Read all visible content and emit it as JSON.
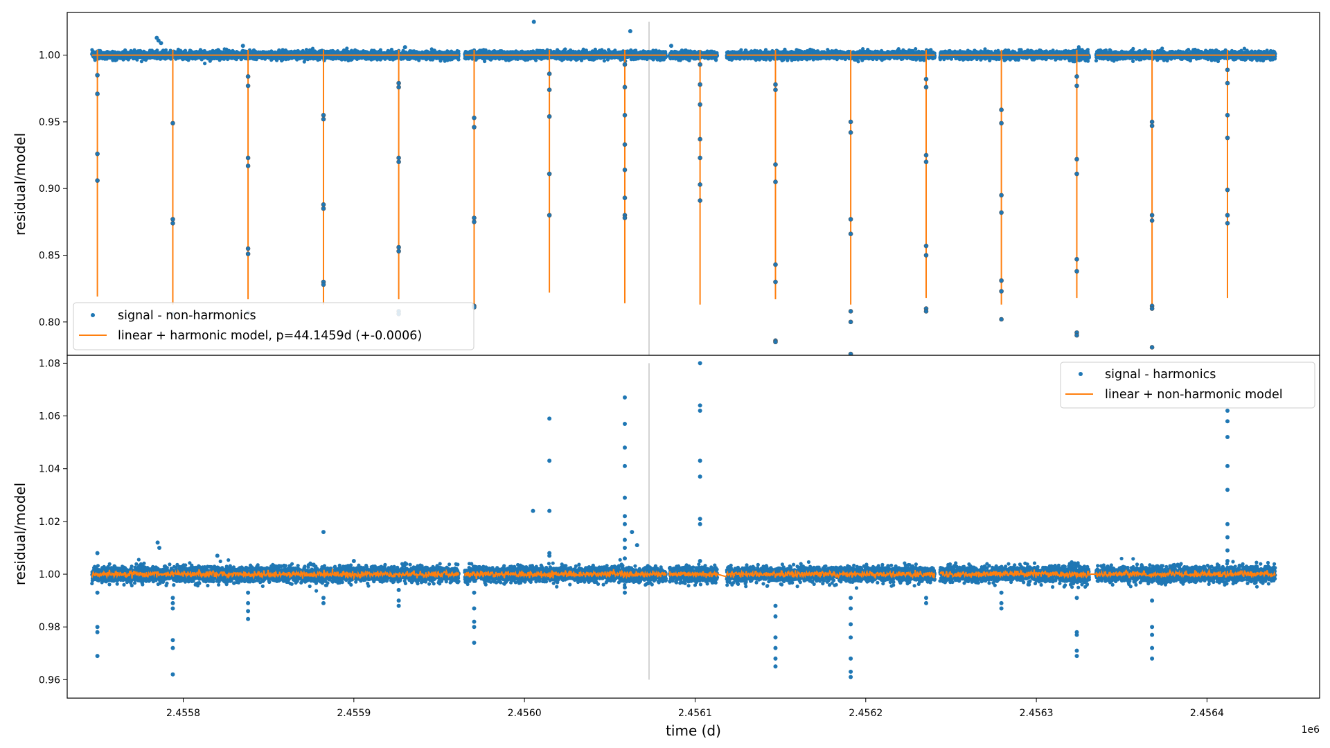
{
  "chart_data": [
    {
      "type": "scatter",
      "panel": "top",
      "ylabel": "residual/model",
      "xlim": [
        2455732,
        2456466
      ],
      "ylim": [
        0.775,
        1.032
      ],
      "yticks": [
        "0.80",
        "0.85",
        "0.90",
        "0.95",
        "1.00"
      ],
      "grid": false,
      "legend_placement": "lower-left",
      "colors": {
        "signal": "#1f77b4",
        "model": "#ff7f0e",
        "marker_line": "#d3d3d3"
      },
      "vertical_marker": {
        "x": 2456073,
        "y_range": [
          0.775,
          1.025
        ]
      },
      "baseline": 1.0,
      "period_d": 44.1459,
      "series": [
        {
          "name": "signal - non-harmonics",
          "kind": "scatter",
          "color": "#1f77b4"
        },
        {
          "name": "linear + harmonic model, p=44.1459d (+-0.0006)",
          "kind": "line",
          "color": "#ff7f0e"
        }
      ],
      "dip_times": [
        2455749.7,
        2455793.9,
        2455838.0,
        2455882.2,
        2455926.3,
        2455970.5,
        2456014.6,
        2456058.8,
        2456102.9,
        2456147.1,
        2456191.2,
        2456235.4,
        2456279.5,
        2456323.7,
        2456367.8,
        2456412.0
      ],
      "model_dip_min": [
        0.819,
        0.813,
        0.817,
        0.813,
        0.817,
        0.813,
        0.822,
        0.814,
        0.813,
        0.817,
        0.813,
        0.818,
        0.813,
        0.818,
        0.813,
        0.818
      ],
      "transit_points": [
        [
          2455749.7,
          0.985
        ],
        [
          2455749.7,
          0.971
        ],
        [
          2455749.7,
          0.926
        ],
        [
          2455749.7,
          0.906
        ],
        [
          2455793.9,
          0.949
        ],
        [
          2455793.9,
          0.877
        ],
        [
          2455793.9,
          0.874
        ],
        [
          2455793.9,
          0.806
        ],
        [
          2455838.0,
          0.984
        ],
        [
          2455838.0,
          0.977
        ],
        [
          2455838.0,
          0.923
        ],
        [
          2455838.0,
          0.917
        ],
        [
          2455838.0,
          0.855
        ],
        [
          2455838.0,
          0.851
        ],
        [
          2455838.0,
          0.807
        ],
        [
          2455882.2,
          0.955
        ],
        [
          2455882.2,
          0.952
        ],
        [
          2455882.2,
          0.888
        ],
        [
          2455882.2,
          0.885
        ],
        [
          2455882.2,
          0.83
        ],
        [
          2455882.2,
          0.828
        ],
        [
          2455926.3,
          0.979
        ],
        [
          2455926.3,
          0.976
        ],
        [
          2455926.3,
          0.923
        ],
        [
          2455926.3,
          0.92
        ],
        [
          2455926.3,
          0.856
        ],
        [
          2455926.3,
          0.853
        ],
        [
          2455926.3,
          0.808
        ],
        [
          2455926.3,
          0.806
        ],
        [
          2455970.5,
          0.953
        ],
        [
          2455970.5,
          0.946
        ],
        [
          2455970.5,
          0.878
        ],
        [
          2455970.5,
          0.875
        ],
        [
          2455970.5,
          0.812
        ],
        [
          2455970.5,
          0.811
        ],
        [
          2456014.6,
          0.986
        ],
        [
          2456014.6,
          0.974
        ],
        [
          2456014.6,
          0.954
        ],
        [
          2456014.6,
          0.911
        ],
        [
          2456014.6,
          0.88
        ],
        [
          2456058.8,
          0.993
        ],
        [
          2456058.8,
          0.976
        ],
        [
          2456058.8,
          0.955
        ],
        [
          2456058.8,
          0.933
        ],
        [
          2456058.8,
          0.914
        ],
        [
          2456058.8,
          0.893
        ],
        [
          2456058.8,
          0.88
        ],
        [
          2456058.8,
          0.878
        ],
        [
          2456102.9,
          0.993
        ],
        [
          2456102.9,
          0.978
        ],
        [
          2456102.9,
          0.963
        ],
        [
          2456102.9,
          0.937
        ],
        [
          2456102.9,
          0.923
        ],
        [
          2456102.9,
          0.903
        ],
        [
          2456102.9,
          0.891
        ],
        [
          2456147.1,
          0.978
        ],
        [
          2456147.1,
          0.974
        ],
        [
          2456147.1,
          0.918
        ],
        [
          2456147.1,
          0.905
        ],
        [
          2456147.1,
          0.843
        ],
        [
          2456147.1,
          0.83
        ],
        [
          2456147.1,
          0.786
        ],
        [
          2456147.1,
          0.785
        ],
        [
          2456191.2,
          0.95
        ],
        [
          2456191.2,
          0.942
        ],
        [
          2456191.2,
          0.877
        ],
        [
          2456191.2,
          0.866
        ],
        [
          2456191.2,
          0.808
        ],
        [
          2456191.2,
          0.8
        ],
        [
          2456191.2,
          0.776
        ],
        [
          2456235.4,
          0.982
        ],
        [
          2456235.4,
          0.976
        ],
        [
          2456235.4,
          0.925
        ],
        [
          2456235.4,
          0.92
        ],
        [
          2456235.4,
          0.857
        ],
        [
          2456235.4,
          0.85
        ],
        [
          2456235.4,
          0.81
        ],
        [
          2456235.4,
          0.808
        ],
        [
          2456279.5,
          0.959
        ],
        [
          2456279.5,
          0.949
        ],
        [
          2456279.5,
          0.895
        ],
        [
          2456279.5,
          0.882
        ],
        [
          2456279.5,
          0.831
        ],
        [
          2456279.5,
          0.823
        ],
        [
          2456279.5,
          0.802
        ],
        [
          2456323.7,
          0.984
        ],
        [
          2456323.7,
          0.977
        ],
        [
          2456323.7,
          0.922
        ],
        [
          2456323.7,
          0.911
        ],
        [
          2456323.7,
          0.847
        ],
        [
          2456323.7,
          0.838
        ],
        [
          2456323.7,
          0.792
        ],
        [
          2456323.7,
          0.79
        ],
        [
          2456367.8,
          0.95
        ],
        [
          2456367.8,
          0.947
        ],
        [
          2456367.8,
          0.88
        ],
        [
          2456367.8,
          0.876
        ],
        [
          2456367.8,
          0.812
        ],
        [
          2456367.8,
          0.81
        ],
        [
          2456367.8,
          0.781
        ],
        [
          2456412.0,
          0.989
        ],
        [
          2456412.0,
          0.979
        ],
        [
          2456412.0,
          0.955
        ],
        [
          2456412.0,
          0.938
        ],
        [
          2456412.0,
          0.899
        ],
        [
          2456412.0,
          0.88
        ],
        [
          2456412.0,
          0.874
        ]
      ],
      "baseline_outliers": [
        [
          2455784.5,
          1.013
        ],
        [
          2455785.5,
          1.011
        ],
        [
          2455787.0,
          1.009
        ],
        [
          2456005.5,
          1.025
        ],
        [
          2456062.0,
          1.018
        ],
        [
          2456086.0,
          1.007
        ],
        [
          2455835.0,
          1.007
        ],
        [
          2455930.0,
          1.006
        ]
      ]
    },
    {
      "type": "scatter",
      "panel": "bottom",
      "xlabel": "time (d)",
      "ylabel": "residual/model",
      "x_offset_label": "1e6",
      "xlim": [
        2455732,
        2456466
      ],
      "ylim": [
        0.953,
        1.083
      ],
      "xticks": [
        "2.4558",
        "2.4559",
        "2.4560",
        "2.4561",
        "2.4562",
        "2.4563",
        "2.4564"
      ],
      "yticks": [
        "0.96",
        "0.98",
        "1.00",
        "1.02",
        "1.04",
        "1.06",
        "1.08"
      ],
      "grid": false,
      "legend_placement": "top-right",
      "colors": {
        "signal": "#1f77b4",
        "model": "#ff7f0e",
        "marker_line": "#d3d3d3"
      },
      "vertical_marker": {
        "x": 2456073,
        "y_range": [
          0.96,
          1.08
        ]
      },
      "baseline": 1.0,
      "series": [
        {
          "name": "signal - harmonics",
          "kind": "scatter",
          "color": "#1f77b4"
        },
        {
          "name": "linear + non-harmonic model",
          "kind": "line",
          "color": "#ff7f0e"
        }
      ],
      "residual_points": [
        [
          2455749.7,
          0.98
        ],
        [
          2455749.7,
          0.978
        ],
        [
          2455749.7,
          0.969
        ],
        [
          2455749.7,
          0.993
        ],
        [
          2455749.7,
          1.008
        ],
        [
          2455793.9,
          0.975
        ],
        [
          2455793.9,
          0.972
        ],
        [
          2455793.9,
          0.962
        ],
        [
          2455793.9,
          0.991
        ],
        [
          2455793.9,
          0.989
        ],
        [
          2455793.9,
          0.987
        ],
        [
          2455838.0,
          0.989
        ],
        [
          2455838.0,
          0.986
        ],
        [
          2455838.0,
          0.983
        ],
        [
          2455838.0,
          0.993
        ],
        [
          2455882.2,
          1.016
        ],
        [
          2455882.2,
          0.991
        ],
        [
          2455882.2,
          0.989
        ],
        [
          2455926.3,
          0.99
        ],
        [
          2455926.3,
          0.988
        ],
        [
          2455926.3,
          0.994
        ],
        [
          2455970.5,
          0.987
        ],
        [
          2455970.5,
          0.982
        ],
        [
          2455970.5,
          0.98
        ],
        [
          2455970.5,
          0.974
        ],
        [
          2455970.5,
          0.993
        ],
        [
          2456014.6,
          1.059
        ],
        [
          2456014.6,
          1.043
        ],
        [
          2456014.6,
          1.024
        ],
        [
          2456014.6,
          1.008
        ],
        [
          2456014.6,
          1.007
        ],
        [
          2456005.0,
          1.024
        ],
        [
          2456058.8,
          1.067
        ],
        [
          2456058.8,
          1.057
        ],
        [
          2456058.8,
          1.048
        ],
        [
          2456058.8,
          1.041
        ],
        [
          2456058.8,
          1.029
        ],
        [
          2456058.8,
          1.022
        ],
        [
          2456058.8,
          1.019
        ],
        [
          2456058.8,
          1.013
        ],
        [
          2456058.8,
          1.01
        ],
        [
          2456058.8,
          1.006
        ],
        [
          2456058.8,
          0.995
        ],
        [
          2456058.8,
          0.993
        ],
        [
          2456063.0,
          1.016
        ],
        [
          2456066.0,
          1.011
        ],
        [
          2456102.9,
          1.08
        ],
        [
          2456102.9,
          1.064
        ],
        [
          2456102.9,
          1.062
        ],
        [
          2456102.9,
          1.043
        ],
        [
          2456102.9,
          1.037
        ],
        [
          2456102.9,
          1.021
        ],
        [
          2456102.9,
          1.019
        ],
        [
          2456102.9,
          1.005
        ],
        [
          2456147.1,
          0.988
        ],
        [
          2456147.1,
          0.984
        ],
        [
          2456147.1,
          0.976
        ],
        [
          2456147.1,
          0.972
        ],
        [
          2456147.1,
          0.968
        ],
        [
          2456147.1,
          0.965
        ],
        [
          2456191.2,
          0.981
        ],
        [
          2456191.2,
          0.976
        ],
        [
          2456191.2,
          0.968
        ],
        [
          2456191.2,
          0.963
        ],
        [
          2456191.2,
          0.961
        ],
        [
          2456191.2,
          0.991
        ],
        [
          2456191.2,
          0.987
        ],
        [
          2456235.4,
          0.991
        ],
        [
          2456235.4,
          0.989
        ],
        [
          2456279.5,
          0.993
        ],
        [
          2456279.5,
          0.989
        ],
        [
          2456279.5,
          0.987
        ],
        [
          2456323.7,
          0.978
        ],
        [
          2456323.7,
          0.977
        ],
        [
          2456323.7,
          0.971
        ],
        [
          2456323.7,
          0.969
        ],
        [
          2456323.7,
          0.991
        ],
        [
          2456367.8,
          0.98
        ],
        [
          2456367.8,
          0.977
        ],
        [
          2456367.8,
          0.972
        ],
        [
          2456367.8,
          0.968
        ],
        [
          2456367.8,
          0.99
        ],
        [
          2456412.0,
          1.062
        ],
        [
          2456412.0,
          1.058
        ],
        [
          2456412.0,
          1.052
        ],
        [
          2456412.0,
          1.041
        ],
        [
          2456412.0,
          1.032
        ],
        [
          2456412.0,
          1.019
        ],
        [
          2456412.0,
          1.014
        ],
        [
          2456412.0,
          1.009
        ],
        [
          2456412.0,
          1.005
        ],
        [
          2455785.0,
          1.012
        ],
        [
          2455786.0,
          1.01
        ],
        [
          2455820.0,
          1.007
        ],
        [
          2455900.0,
          1.005
        ]
      ]
    }
  ]
}
